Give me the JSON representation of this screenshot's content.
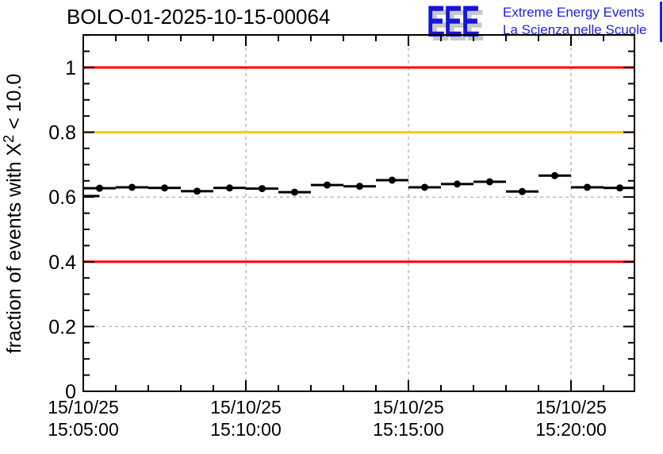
{
  "window": {
    "title": "BOLO-01-2025-10-15-00064"
  },
  "logo": {
    "acronym": "EEE",
    "tagline_line1": "Extreme Energy Events",
    "tagline_line2": "La Scienza nelle Scuole",
    "acronym_color": "#1515dd",
    "tagline_color": "#2222dd",
    "shadow_color": "#c8c8c8"
  },
  "chart_data": {
    "type": "scatter",
    "title": "BOLO-01-2025-10-15-00064",
    "ylabel_prefix": "fraction of events with X",
    "ylabel_sup": "2",
    "ylabel_suffix": "< 10.0",
    "xlabel": "",
    "ylim": [
      0,
      1.1
    ],
    "xlim_minutes": [
      0,
      16.95
    ],
    "grid": true,
    "grid_color": "#999999",
    "axis_color": "#000000",
    "y_major_ticks": [
      0,
      0.2,
      0.4,
      0.6,
      0.8,
      1
    ],
    "y_tick_labels": [
      "0",
      "0.2",
      "0.4",
      "0.6",
      "0.8",
      "1"
    ],
    "y_minor_step": 0.05,
    "x_major_ticks_minutes": [
      0,
      5,
      10,
      15
    ],
    "x_tick_labels": [
      [
        "15/10/25",
        "15:05:00"
      ],
      [
        "15/10/25",
        "15:10:00"
      ],
      [
        "15/10/25",
        "15:15:00"
      ],
      [
        "15/10/25",
        "15:20:00"
      ]
    ],
    "x_minor_step_minutes": 1,
    "reference_lines": [
      {
        "y": 1.0,
        "color": "#ff0000"
      },
      {
        "y": 0.8,
        "color": "#ffcc00"
      },
      {
        "y": 0.4,
        "color": "#ff0000"
      }
    ],
    "series": [
      {
        "name": "fraction of events with chi2 < 10",
        "marker_color": "#000000",
        "marker": "filled-circle",
        "x_err_minutes": 0.5,
        "points": [
          {
            "t_min": 0.0,
            "value": 0.603,
            "clipped": true
          },
          {
            "t_min": 0.5,
            "value": 0.627
          },
          {
            "t_min": 1.5,
            "value": 0.63
          },
          {
            "t_min": 2.5,
            "value": 0.628
          },
          {
            "t_min": 3.5,
            "value": 0.618
          },
          {
            "t_min": 4.5,
            "value": 0.628
          },
          {
            "t_min": 5.5,
            "value": 0.626
          },
          {
            "t_min": 6.5,
            "value": 0.615
          },
          {
            "t_min": 7.5,
            "value": 0.637
          },
          {
            "t_min": 8.5,
            "value": 0.633
          },
          {
            "t_min": 9.5,
            "value": 0.652
          },
          {
            "t_min": 10.5,
            "value": 0.63
          },
          {
            "t_min": 11.5,
            "value": 0.64
          },
          {
            "t_min": 12.5,
            "value": 0.647
          },
          {
            "t_min": 13.5,
            "value": 0.617
          },
          {
            "t_min": 14.5,
            "value": 0.666
          },
          {
            "t_min": 15.5,
            "value": 0.63
          },
          {
            "t_min": 16.5,
            "value": 0.628
          }
        ]
      }
    ]
  }
}
